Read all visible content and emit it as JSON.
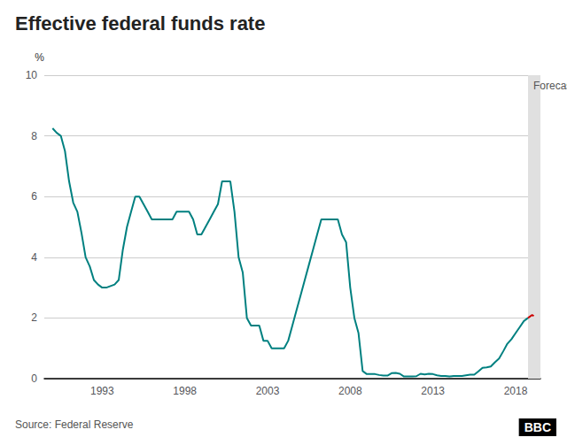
{
  "chart_data": {
    "type": "line",
    "title": "Effective federal funds rate",
    "ylabel": "%",
    "source": "Source: Federal Reserve",
    "badge": "BBC",
    "series": [
      {
        "color": "#008080",
        "line_style": "solid",
        "x": [
          1990.0,
          1990.25,
          1990.5,
          1990.75,
          1991.0,
          1991.25,
          1991.5,
          1991.75,
          1992.0,
          1992.25,
          1992.5,
          1992.75,
          1993.0,
          1993.25,
          1993.5,
          1993.75,
          1994.0,
          1994.25,
          1994.5,
          1994.75,
          1995.0,
          1995.25,
          1995.5,
          1995.75,
          1996.0,
          1996.25,
          1996.5,
          1996.75,
          1997.0,
          1997.25,
          1997.5,
          1997.75,
          1998.0,
          1998.25,
          1998.5,
          1998.75,
          1999.0,
          1999.25,
          1999.5,
          1999.75,
          2000.0,
          2000.25,
          2000.5,
          2000.75,
          2001.0,
          2001.25,
          2001.5,
          2001.75,
          2002.0,
          2002.25,
          2002.5,
          2002.75,
          2003.0,
          2003.25,
          2003.5,
          2003.75,
          2004.0,
          2004.25,
          2004.5,
          2004.75,
          2005.0,
          2005.25,
          2005.5,
          2005.75,
          2006.0,
          2006.25,
          2006.5,
          2006.75,
          2007.0,
          2007.25,
          2007.5,
          2007.75,
          2008.0,
          2008.25,
          2008.5,
          2008.75,
          2009.0,
          2009.25,
          2009.5,
          2009.75,
          2010.0,
          2010.25,
          2010.5,
          2010.75,
          2011.0,
          2011.25,
          2011.5,
          2011.75,
          2012.0,
          2012.25,
          2012.5,
          2012.75,
          2013.0,
          2013.25,
          2013.5,
          2013.75,
          2014.0,
          2014.25,
          2014.5,
          2014.75,
          2015.0,
          2015.25,
          2015.5,
          2015.75,
          2016.0,
          2016.25,
          2016.5,
          2016.75,
          2017.0,
          2017.25,
          2017.5,
          2017.75,
          2018.0,
          2018.25,
          2018.5,
          2018.75
        ],
        "values": [
          8.25,
          8.1,
          8.0,
          7.5,
          6.5,
          5.8,
          5.5,
          4.8,
          4.0,
          3.7,
          3.25,
          3.1,
          3.0,
          3.0,
          3.05,
          3.1,
          3.25,
          4.25,
          5.0,
          5.5,
          6.0,
          6.0,
          5.75,
          5.5,
          5.25,
          5.25,
          5.25,
          5.25,
          5.25,
          5.25,
          5.5,
          5.5,
          5.5,
          5.5,
          5.25,
          4.75,
          4.75,
          5.0,
          5.25,
          5.5,
          5.75,
          6.5,
          6.5,
          6.5,
          5.5,
          4.0,
          3.5,
          2.0,
          1.75,
          1.75,
          1.75,
          1.25,
          1.25,
          1.0,
          1.0,
          1.0,
          1.0,
          1.25,
          1.75,
          2.25,
          2.75,
          3.25,
          3.75,
          4.25,
          4.75,
          5.25,
          5.25,
          5.25,
          5.25,
          5.25,
          4.75,
          4.5,
          3.0,
          2.0,
          1.5,
          0.25,
          0.15,
          0.15,
          0.15,
          0.12,
          0.1,
          0.1,
          0.18,
          0.19,
          0.16,
          0.07,
          0.07,
          0.07,
          0.08,
          0.16,
          0.14,
          0.16,
          0.15,
          0.11,
          0.09,
          0.09,
          0.07,
          0.09,
          0.09,
          0.09,
          0.11,
          0.13,
          0.13,
          0.24,
          0.36,
          0.37,
          0.4,
          0.54,
          0.66,
          0.9,
          1.15,
          1.3,
          1.5,
          1.7,
          1.9,
          2.0
        ]
      },
      {
        "color": "#cc0000",
        "line_style": "dashed",
        "x": [
          2018.75,
          2019.0,
          2019.25
        ],
        "values": [
          2.0,
          2.1,
          2.0
        ]
      }
    ],
    "shaded_region": {
      "from": 2018.75,
      "to": 2019.5,
      "label": "Forecast",
      "color": "#e0e0e0"
    },
    "xlim": [
      1989.5,
      2019.5
    ],
    "xticks": [
      1993,
      1998,
      2003,
      2008,
      2013,
      2018
    ],
    "ylim": [
      0,
      10
    ],
    "yticks": [
      0,
      2,
      4,
      6,
      8,
      10
    ],
    "grid": true
  }
}
